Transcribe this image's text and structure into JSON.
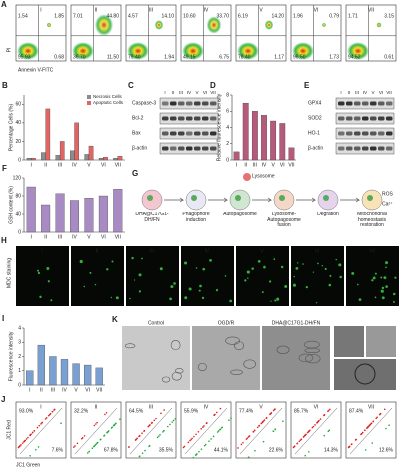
{
  "panels": {
    "A": {
      "letter": "A",
      "x_label": "Annexin V-FITC",
      "y_label": "PI",
      "plots": [
        {
          "label": "I",
          "quadrants": [
            "1.54",
            "1.85",
            "95.93",
            "0.68"
          ]
        },
        {
          "label": "II",
          "quadrants": [
            "7.01",
            "44.80",
            "36.70",
            "11.50"
          ]
        },
        {
          "label": "III",
          "quadrants": [
            "4.57",
            "14.10",
            "79.40",
            "1.94"
          ]
        },
        {
          "label": "IV",
          "quadrants": [
            "10.60",
            "33.70",
            "49.15",
            "6.75"
          ]
        },
        {
          "label": "V",
          "quadrants": [
            "6.19",
            "14.20",
            "78.40",
            "1.17"
          ]
        },
        {
          "label": "VI",
          "quadrants": [
            "1.96",
            "0.79",
            "96.50",
            "1.73"
          ]
        },
        {
          "label": "VII",
          "quadrants": [
            "1.71",
            "3.15",
            "94.52",
            "0.61"
          ]
        }
      ]
    },
    "C": {
      "letter": "C",
      "lanes": [
        "I",
        "II",
        "III",
        "IV",
        "V",
        "VI",
        "VII"
      ],
      "proteins": [
        "Caspase-3",
        "Bcl-2",
        "Bax",
        "β-actin"
      ]
    },
    "E": {
      "letter": "E",
      "lanes": [
        "I",
        "II",
        "III",
        "IV",
        "V",
        "VI",
        "VII"
      ],
      "proteins": [
        "GPX4",
        "SOD2",
        "HO-1",
        "β-actin"
      ]
    },
    "G": {
      "letter": "G",
      "steps": [
        "DHA@C17G1-DH/FN",
        "Phagophore induction",
        "Autopagosome",
        "Lysosome-Autopagosome fusion",
        "Degration",
        "Mitochondrial homeostasis restoration"
      ],
      "lysosome": "Lysosome",
      "ros": "ROS",
      "ca": "Ca²⁺"
    },
    "H": {
      "letter": "H",
      "side_label": "MDC staining",
      "tiles": [
        "I",
        "II",
        "III",
        "IV",
        "V",
        "VI",
        "VII"
      ]
    },
    "K": {
      "letter": "K",
      "tiles": [
        "Control",
        "OGD/R",
        "DHA@C17G1-DH/FN"
      ]
    },
    "J": {
      "letter": "J",
      "x_label": "JC1 Green",
      "y_label": "JC1 Red",
      "plots": [
        {
          "label": "I",
          "upper": "93.0%",
          "lower": "7.6%"
        },
        {
          "label": "II",
          "upper": "32.2%",
          "lower": "67.8%"
        },
        {
          "label": "III",
          "upper": "64.5%",
          "lower": "35.5%"
        },
        {
          "label": "IV",
          "upper": "55.9%",
          "lower": "44.1%"
        },
        {
          "label": "V",
          "upper": "77.4%",
          "lower": "22.6%"
        },
        {
          "label": "VI",
          "upper": "85.7%",
          "lower": "14.3%"
        },
        {
          "label": "VII",
          "upper": "87.4%",
          "lower": "12.6%"
        }
      ]
    }
  },
  "chart_data": [
    {
      "letter": "B",
      "type": "bar",
      "y_label": "Percentage Cells (%)",
      "categories": [
        "I",
        "II",
        "III",
        "IV",
        "V",
        "VI",
        "VII"
      ],
      "series": [
        {
          "name": "Necrosis Cells",
          "color": "#8c8c8c",
          "values": [
            2,
            8,
            5,
            10,
            6,
            2,
            2
          ]
        },
        {
          "name": "Apoptotic Cells",
          "color": "#e06666",
          "values": [
            2,
            55,
            20,
            40,
            15,
            3,
            4
          ]
        }
      ],
      "ylim": [
        0,
        70
      ],
      "yticks": [
        0,
        20,
        40,
        60
      ]
    },
    {
      "letter": "D",
      "type": "bar",
      "y_label": "Relative fluorescence intensity",
      "categories": [
        "I",
        "II",
        "III",
        "IV",
        "V",
        "VI",
        "VII"
      ],
      "series": [
        {
          "color": "#b55a7a",
          "values": [
            1.0,
            7.0,
            6.0,
            5.5,
            4.8,
            4.5,
            1.5
          ]
        }
      ],
      "ylim": [
        0,
        8
      ],
      "yticks": [
        0,
        2,
        4,
        6,
        8
      ]
    },
    {
      "letter": "F",
      "type": "bar",
      "y_label": "GSH content (%)",
      "categories": [
        "I",
        "II",
        "III",
        "IV",
        "V",
        "VI",
        "VII"
      ],
      "series": [
        {
          "color": "#a98bc4",
          "values": [
            100,
            60,
            85,
            70,
            75,
            80,
            95
          ]
        }
      ],
      "ylim": [
        0,
        120
      ],
      "yticks": [
        0,
        40,
        80,
        120
      ]
    },
    {
      "letter": "I",
      "type": "bar",
      "y_label": "Fluorescence intensity",
      "categories": [
        "I",
        "II",
        "III",
        "IV",
        "V",
        "VI",
        "VII"
      ],
      "series": [
        {
          "color": "#7a9fd1",
          "values": [
            1.0,
            2.8,
            2.0,
            1.8,
            1.5,
            1.4,
            1.2
          ]
        }
      ],
      "ylim": [
        0,
        4
      ],
      "yticks": [
        0,
        1,
        2,
        3,
        4
      ]
    }
  ]
}
